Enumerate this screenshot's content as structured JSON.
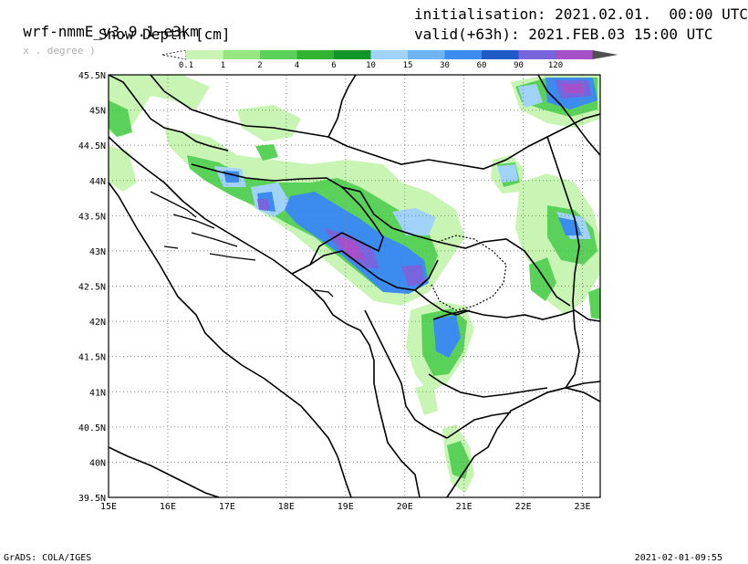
{
  "header": {
    "model_name": "wrf-nmmE_v3.9.1-e3km",
    "model_note": "x . degree )",
    "variable": "Snow Depth [cm]",
    "init_label": "initialisation:",
    "init_time": "2021.02.01.  00:00 UTC",
    "valid_label": "valid(+63h):",
    "valid_time": "2021.FEB.03 15:00 UTC"
  },
  "legend": {
    "labels": [
      "0.1",
      "1",
      "2",
      "4",
      "6",
      "10",
      "15",
      "30",
      "60",
      "90",
      "120"
    ],
    "colors": [
      "#ffffff",
      "#c8f5b4",
      "#96e682",
      "#5ad25a",
      "#32b432",
      "#12962a",
      "#a0d2fa",
      "#6eb4f5",
      "#3c8cf0",
      "#1e5ac8",
      "#7864dc",
      "#a550c8",
      "#505050"
    ]
  },
  "axes": {
    "lat_labels": [
      "45.5N",
      "45N",
      "44.5N",
      "44N",
      "43.5N",
      "43N",
      "42.5N",
      "42N",
      "41.5N",
      "41N",
      "40.5N",
      "40N",
      "39.5N"
    ],
    "lat_values": [
      45.5,
      45,
      44.5,
      44,
      43.5,
      43,
      42.5,
      42,
      41.5,
      41,
      40.5,
      40,
      39.5
    ],
    "lon_labels": [
      "15E",
      "16E",
      "17E",
      "18E",
      "19E",
      "20E",
      "21E",
      "22E",
      "23E"
    ],
    "lon_values": [
      15,
      16,
      17,
      18,
      19,
      20,
      21,
      22,
      23
    ],
    "lon_range": [
      15,
      23.3
    ],
    "lat_range": [
      39.5,
      45.5
    ]
  },
  "footer": {
    "left": "GrADS: COLA/IGES",
    "right": "2021-02-01-09:55"
  }
}
